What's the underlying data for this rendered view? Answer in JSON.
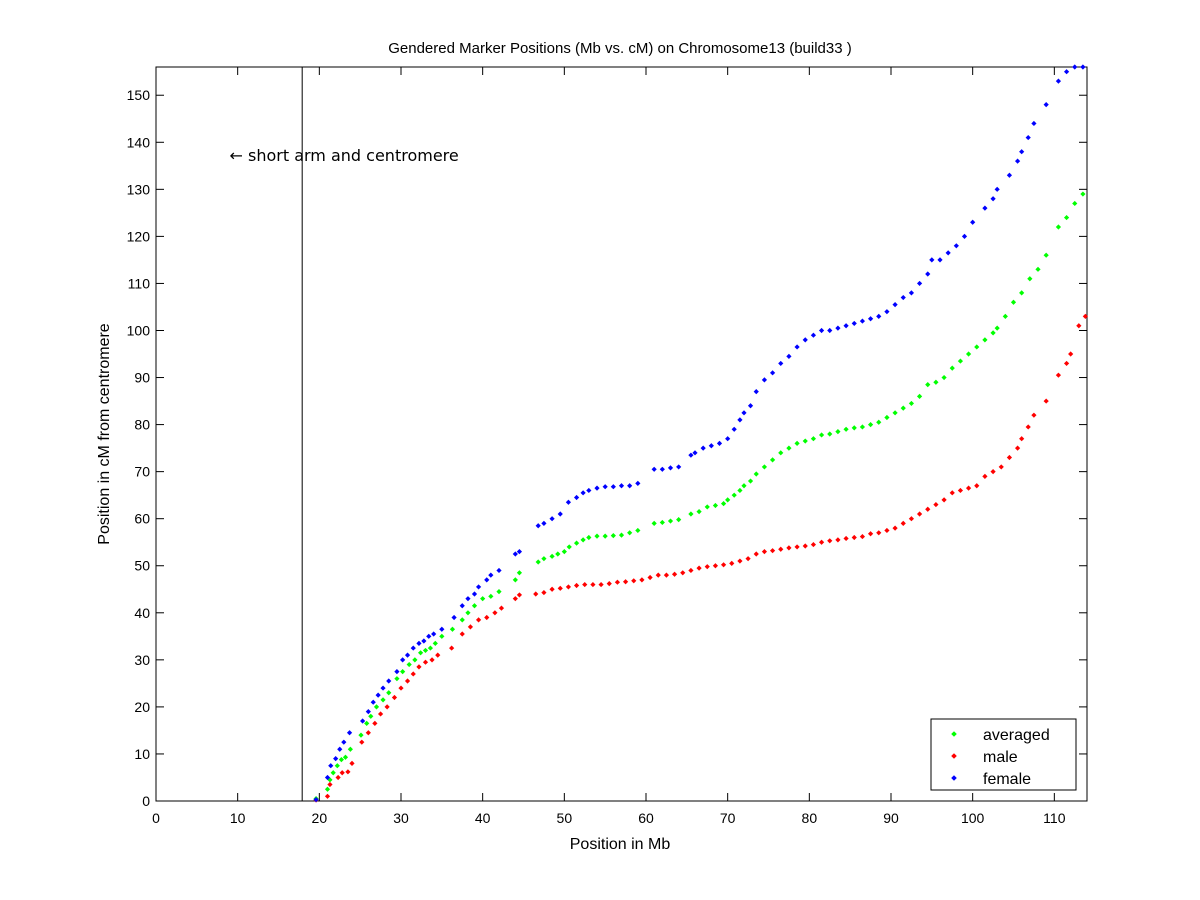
{
  "chart_data": {
    "type": "scatter",
    "title": "Gendered Marker Positions (Mb vs. cM) on Chromosome13 (build33 )",
    "xlabel": "Position in Mb",
    "ylabel": "Position in cM from centromere",
    "xlim": [
      0,
      114
    ],
    "ylim": [
      0,
      156
    ],
    "xticks": [
      0,
      10,
      20,
      30,
      40,
      50,
      60,
      70,
      80,
      90,
      100,
      110
    ],
    "yticks": [
      0,
      10,
      20,
      30,
      40,
      50,
      60,
      70,
      80,
      90,
      100,
      110,
      120,
      130,
      140,
      150
    ],
    "grid": false,
    "legend_position": "bottom-right",
    "annotation": {
      "text": "← short arm and centromere",
      "x": 9,
      "y": 136
    },
    "vertical_line": {
      "x": 17.9
    },
    "series": [
      {
        "name": "averaged",
        "color": "#00ff00",
        "points": [
          [
            19.6,
            0.5
          ],
          [
            21.0,
            2.5
          ],
          [
            21.3,
            4.5
          ],
          [
            21.7,
            6
          ],
          [
            22.2,
            7.5
          ],
          [
            22.7,
            8.8
          ],
          [
            23.2,
            9.3
          ],
          [
            23.8,
            11
          ],
          [
            25.1,
            14
          ],
          [
            25.8,
            16.5
          ],
          [
            26.3,
            18
          ],
          [
            27.0,
            20
          ],
          [
            27.8,
            21.5
          ],
          [
            28.5,
            23
          ],
          [
            29.5,
            26
          ],
          [
            30.2,
            27.5
          ],
          [
            31.0,
            29
          ],
          [
            31.7,
            30
          ],
          [
            32.4,
            31.5
          ],
          [
            33.0,
            32
          ],
          [
            33.6,
            32.5
          ],
          [
            34.2,
            33.5
          ],
          [
            35.0,
            35
          ],
          [
            36.3,
            36.5
          ],
          [
            37.5,
            38.5
          ],
          [
            38.2,
            40
          ],
          [
            39.0,
            41.5
          ],
          [
            40.0,
            43
          ],
          [
            41.0,
            43.5
          ],
          [
            42.0,
            44.5
          ],
          [
            44.0,
            47
          ],
          [
            44.5,
            48.5
          ],
          [
            46.8,
            50.8
          ],
          [
            47.5,
            51.5
          ],
          [
            48.5,
            52
          ],
          [
            49.2,
            52.5
          ],
          [
            50.0,
            53
          ],
          [
            50.6,
            54
          ],
          [
            51.5,
            54.8
          ],
          [
            52.3,
            55.5
          ],
          [
            53.0,
            56
          ],
          [
            54.0,
            56.3
          ],
          [
            55.0,
            56.3
          ],
          [
            56.0,
            56.4
          ],
          [
            57.0,
            56.5
          ],
          [
            58.0,
            57
          ],
          [
            59.0,
            57.5
          ],
          [
            61.0,
            59
          ],
          [
            62.0,
            59.2
          ],
          [
            63.0,
            59.5
          ],
          [
            64.0,
            59.8
          ],
          [
            65.5,
            61
          ],
          [
            66.5,
            61.5
          ],
          [
            67.5,
            62.5
          ],
          [
            68.5,
            62.8
          ],
          [
            69.5,
            63.2
          ],
          [
            70.0,
            64
          ],
          [
            70.8,
            65
          ],
          [
            71.5,
            66
          ],
          [
            72.0,
            67
          ],
          [
            72.8,
            68
          ],
          [
            73.5,
            69.5
          ],
          [
            74.5,
            71
          ],
          [
            75.5,
            72.5
          ],
          [
            76.5,
            74
          ],
          [
            77.5,
            75
          ],
          [
            78.5,
            76
          ],
          [
            79.5,
            76.5
          ],
          [
            80.5,
            77
          ],
          [
            81.5,
            77.8
          ],
          [
            82.5,
            78
          ],
          [
            83.5,
            78.5
          ],
          [
            84.5,
            79
          ],
          [
            85.5,
            79.3
          ],
          [
            86.5,
            79.5
          ],
          [
            87.5,
            80
          ],
          [
            88.5,
            80.5
          ],
          [
            89.5,
            81.5
          ],
          [
            90.5,
            82.5
          ],
          [
            91.5,
            83.5
          ],
          [
            92.5,
            84.5
          ],
          [
            93.5,
            86
          ],
          [
            94.5,
            88.5
          ],
          [
            95.5,
            89
          ],
          [
            96.5,
            90
          ],
          [
            97.5,
            92
          ],
          [
            98.5,
            93.5
          ],
          [
            99.5,
            95
          ],
          [
            100.5,
            96.5
          ],
          [
            101.5,
            98
          ],
          [
            102.5,
            99.5
          ],
          [
            103.0,
            100.5
          ],
          [
            104.0,
            103
          ],
          [
            105.0,
            106
          ],
          [
            106.0,
            108
          ],
          [
            107.0,
            111
          ],
          [
            108.0,
            113
          ],
          [
            109.0,
            116
          ],
          [
            110.5,
            122
          ],
          [
            111.5,
            124
          ],
          [
            112.5,
            127
          ],
          [
            113.5,
            129
          ]
        ]
      },
      {
        "name": "male",
        "color": "#ff0000",
        "points": [
          [
            19.6,
            0.2
          ],
          [
            21.0,
            1
          ],
          [
            21.3,
            3.5
          ],
          [
            22.3,
            5
          ],
          [
            22.8,
            6
          ],
          [
            23.5,
            6.2
          ],
          [
            24.0,
            8
          ],
          [
            25.2,
            12.5
          ],
          [
            26.0,
            14.5
          ],
          [
            26.8,
            16.5
          ],
          [
            27.5,
            18.5
          ],
          [
            28.3,
            20
          ],
          [
            29.2,
            22
          ],
          [
            30.0,
            24
          ],
          [
            30.8,
            25.5
          ],
          [
            31.5,
            27
          ],
          [
            32.2,
            28.5
          ],
          [
            33.0,
            29.5
          ],
          [
            33.8,
            30
          ],
          [
            34.5,
            31
          ],
          [
            36.2,
            32.5
          ],
          [
            37.5,
            35.5
          ],
          [
            38.5,
            37
          ],
          [
            39.5,
            38.5
          ],
          [
            40.5,
            39
          ],
          [
            41.5,
            40
          ],
          [
            42.3,
            41
          ],
          [
            44.0,
            43
          ],
          [
            44.5,
            43.8
          ],
          [
            46.5,
            44
          ],
          [
            47.5,
            44.3
          ],
          [
            48.5,
            45
          ],
          [
            49.5,
            45.2
          ],
          [
            50.5,
            45.5
          ],
          [
            51.5,
            45.8
          ],
          [
            52.5,
            46
          ],
          [
            53.5,
            46
          ],
          [
            54.5,
            46
          ],
          [
            55.5,
            46.2
          ],
          [
            56.5,
            46.5
          ],
          [
            57.5,
            46.6
          ],
          [
            58.5,
            46.8
          ],
          [
            59.5,
            47
          ],
          [
            60.5,
            47.5
          ],
          [
            61.5,
            48
          ],
          [
            62.5,
            48
          ],
          [
            63.5,
            48.2
          ],
          [
            64.5,
            48.5
          ],
          [
            65.5,
            49
          ],
          [
            66.5,
            49.5
          ],
          [
            67.5,
            49.8
          ],
          [
            68.5,
            50
          ],
          [
            69.5,
            50.2
          ],
          [
            70.5,
            50.5
          ],
          [
            71.5,
            51
          ],
          [
            72.5,
            51.5
          ],
          [
            73.5,
            52.5
          ],
          [
            74.5,
            53
          ],
          [
            75.5,
            53.2
          ],
          [
            76.5,
            53.5
          ],
          [
            77.5,
            53.8
          ],
          [
            78.5,
            54
          ],
          [
            79.5,
            54.2
          ],
          [
            80.5,
            54.5
          ],
          [
            81.5,
            55
          ],
          [
            82.5,
            55.3
          ],
          [
            83.5,
            55.5
          ],
          [
            84.5,
            55.8
          ],
          [
            85.5,
            56
          ],
          [
            86.5,
            56.2
          ],
          [
            87.5,
            56.8
          ],
          [
            88.5,
            57
          ],
          [
            89.5,
            57.5
          ],
          [
            90.5,
            58
          ],
          [
            91.5,
            59
          ],
          [
            92.5,
            60
          ],
          [
            93.5,
            61
          ],
          [
            94.5,
            62
          ],
          [
            95.5,
            63
          ],
          [
            96.5,
            64
          ],
          [
            97.5,
            65.5
          ],
          [
            98.5,
            66
          ],
          [
            99.5,
            66.5
          ],
          [
            100.5,
            67
          ],
          [
            101.5,
            69
          ],
          [
            102.5,
            70
          ],
          [
            103.5,
            71
          ],
          [
            104.5,
            73
          ],
          [
            105.5,
            75
          ],
          [
            106.0,
            77
          ],
          [
            106.8,
            79.5
          ],
          [
            107.5,
            82
          ],
          [
            109.0,
            85
          ],
          [
            110.5,
            90.5
          ],
          [
            111.5,
            93
          ],
          [
            112.0,
            95
          ],
          [
            113.0,
            101
          ],
          [
            113.8,
            103
          ]
        ]
      },
      {
        "name": "female",
        "color": "#0000ff",
        "points": [
          [
            19.6,
            0.3
          ],
          [
            21.0,
            5
          ],
          [
            21.4,
            7.5
          ],
          [
            22.0,
            9
          ],
          [
            22.5,
            11
          ],
          [
            23.0,
            12.5
          ],
          [
            23.7,
            14.5
          ],
          [
            25.3,
            17
          ],
          [
            26.0,
            19
          ],
          [
            26.6,
            21
          ],
          [
            27.2,
            22.5
          ],
          [
            27.8,
            24
          ],
          [
            28.5,
            25.5
          ],
          [
            29.5,
            27.5
          ],
          [
            30.2,
            30
          ],
          [
            30.8,
            31
          ],
          [
            31.5,
            32.5
          ],
          [
            32.2,
            33.5
          ],
          [
            32.8,
            34
          ],
          [
            33.4,
            35
          ],
          [
            34.0,
            35.5
          ],
          [
            35.0,
            36.5
          ],
          [
            36.5,
            39
          ],
          [
            37.5,
            41.5
          ],
          [
            38.2,
            43
          ],
          [
            39.0,
            44
          ],
          [
            39.5,
            45.5
          ],
          [
            40.5,
            47
          ],
          [
            41.0,
            48
          ],
          [
            42.0,
            49
          ],
          [
            44.0,
            52.5
          ],
          [
            44.5,
            53
          ],
          [
            46.8,
            58.5
          ],
          [
            47.5,
            59
          ],
          [
            48.5,
            60
          ],
          [
            49.5,
            61
          ],
          [
            50.5,
            63.5
          ],
          [
            51.5,
            64.5
          ],
          [
            52.3,
            65.5
          ],
          [
            53.0,
            66
          ],
          [
            54.0,
            66.5
          ],
          [
            55.0,
            66.8
          ],
          [
            56.0,
            66.8
          ],
          [
            57.0,
            67
          ],
          [
            58.0,
            67
          ],
          [
            59.0,
            67.5
          ],
          [
            61.0,
            70.5
          ],
          [
            62.0,
            70.5
          ],
          [
            63.0,
            70.8
          ],
          [
            64.0,
            71
          ],
          [
            65.5,
            73.5
          ],
          [
            66.0,
            74
          ],
          [
            67.0,
            75
          ],
          [
            68.0,
            75.5
          ],
          [
            69.0,
            76
          ],
          [
            70.0,
            77
          ],
          [
            70.8,
            79
          ],
          [
            71.5,
            81
          ],
          [
            72.0,
            82.5
          ],
          [
            72.8,
            84
          ],
          [
            73.5,
            87
          ],
          [
            74.5,
            89.5
          ],
          [
            75.5,
            91
          ],
          [
            76.5,
            93
          ],
          [
            77.5,
            94.5
          ],
          [
            78.5,
            96.5
          ],
          [
            79.5,
            98
          ],
          [
            80.5,
            99
          ],
          [
            81.5,
            100
          ],
          [
            82.5,
            100
          ],
          [
            83.5,
            100.5
          ],
          [
            84.5,
            101
          ],
          [
            85.5,
            101.5
          ],
          [
            86.5,
            102
          ],
          [
            87.5,
            102.5
          ],
          [
            88.5,
            103
          ],
          [
            89.5,
            104
          ],
          [
            90.5,
            105.5
          ],
          [
            91.5,
            107
          ],
          [
            92.5,
            108
          ],
          [
            93.5,
            110
          ],
          [
            94.5,
            112
          ],
          [
            95.0,
            115
          ],
          [
            96.0,
            115
          ],
          [
            97.0,
            116.5
          ],
          [
            98.0,
            118
          ],
          [
            99.0,
            120
          ],
          [
            100.0,
            123
          ],
          [
            101.5,
            126
          ],
          [
            102.5,
            128
          ],
          [
            103.0,
            130
          ],
          [
            104.5,
            133
          ],
          [
            105.5,
            136
          ],
          [
            106.0,
            138
          ],
          [
            106.8,
            141
          ],
          [
            107.5,
            144
          ],
          [
            109.0,
            148
          ],
          [
            110.5,
            153
          ],
          [
            111.5,
            155
          ],
          [
            112.5,
            156
          ],
          [
            113.5,
            156
          ]
        ]
      }
    ]
  }
}
